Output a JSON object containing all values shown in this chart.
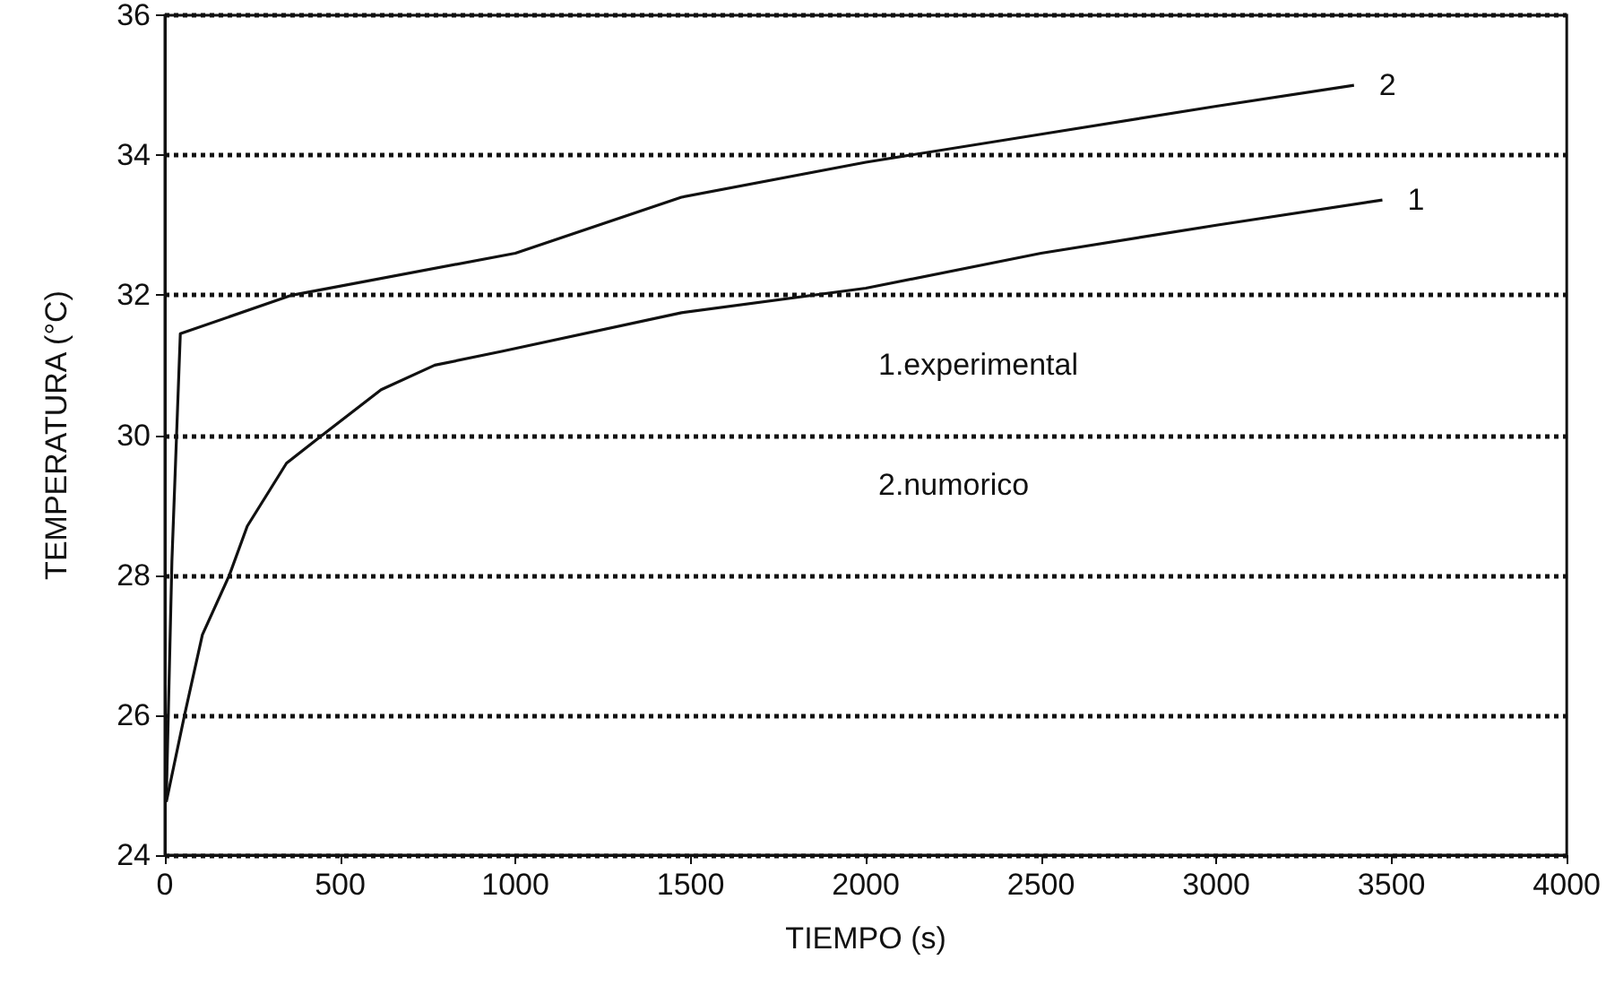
{
  "chart_data": {
    "type": "line",
    "xlabel": "TIEMPO (s)",
    "ylabel": "TEMPERATURA (°C)",
    "xlim": [
      0,
      4000
    ],
    "xticks": [
      0,
      500,
      1000,
      1500,
      2000,
      2500,
      3000,
      3500,
      4000
    ],
    "ylim": [
      24,
      36
    ],
    "yticks": [
      24,
      26,
      28,
      30,
      32,
      34,
      36
    ],
    "grid": "y",
    "marker": "none",
    "line_style": "solid",
    "annotations": [
      "1.experimental",
      "2.numorico"
    ],
    "series": [
      {
        "name": "1",
        "color": "#111111",
        "x": [
          4,
          56,
          107,
          184,
          235,
          347,
          449,
          617,
          770,
          964,
          1474,
          2000,
          2500,
          3000,
          3474
        ],
        "values": [
          24.76,
          26,
          27.15,
          28,
          28.7,
          29.6,
          30,
          30.65,
          31,
          31.2,
          31.75,
          32.1,
          32.6,
          33,
          33.36
        ]
      },
      {
        "name": "2",
        "color": "#111111",
        "x": [
          4,
          20,
          44,
          362,
          1000,
          1474,
          2000,
          2500,
          3000,
          3393
        ],
        "values": [
          24.8,
          28.2,
          31.45,
          32,
          32.6,
          33.4,
          33.9,
          34.3,
          34.7,
          35
        ]
      }
    ]
  }
}
